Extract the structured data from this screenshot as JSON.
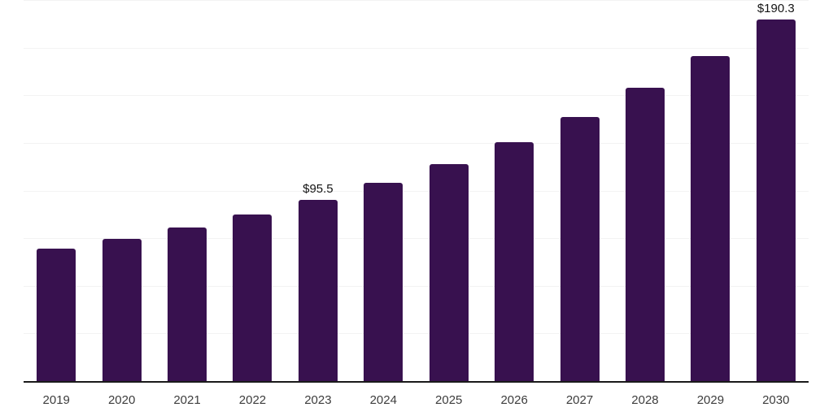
{
  "chart_data": {
    "type": "bar",
    "title": "",
    "xlabel": "",
    "ylabel": "",
    "categories": [
      "2019",
      "2020",
      "2021",
      "2022",
      "2023",
      "2024",
      "2025",
      "2026",
      "2027",
      "2028",
      "2029",
      "2030"
    ],
    "values": [
      69.9,
      75.1,
      81.0,
      87.8,
      95.5,
      104.5,
      114.5,
      125.8,
      139.0,
      154.2,
      171.0,
      190.3
    ],
    "value_labels": [
      "",
      "",
      "",
      "",
      "$95.5",
      "",
      "",
      "",
      "",
      "",
      "",
      "$190.3"
    ],
    "ylim": [
      0,
      200
    ],
    "grid_step": 25,
    "grid": "horizontal-only",
    "legend_position": "none",
    "y_axis_tick_labels_visible": false,
    "bar_color": "#38114F",
    "axis_color": "#1a1a1a",
    "grid_color": "#f3f3f3",
    "tick_color": "#3d3d3d",
    "annotation_color": "#141414",
    "background_color": "#ffffff"
  }
}
